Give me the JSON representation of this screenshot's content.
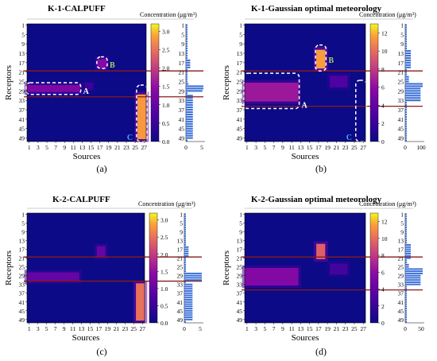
{
  "chart_data": [
    {
      "type": "heatmap",
      "title": "K-1-CALPUFF",
      "panel_label": "(a)",
      "xlabel": "Sources",
      "ylabel": "Receptors",
      "legend_title": "Concentration (μg/m³)",
      "x_ticks": [
        "1",
        "3",
        "5",
        "7",
        "9",
        "11",
        "13",
        "15",
        "17",
        "19",
        "21",
        "23",
        "25",
        "27"
      ],
      "y_ticks": [
        "1",
        "5",
        "9",
        "13",
        "17",
        "21",
        "25",
        "29",
        "33",
        "37",
        "41",
        "45",
        "49"
      ],
      "colorbar_ticks": [
        "0.0",
        "0.5",
        "1.0",
        "1.5",
        "2.0",
        "2.5",
        "3.0"
      ],
      "zlim": [
        0,
        3.2
      ],
      "marginal_ticks": [
        "0",
        "5"
      ],
      "bands": [
        {
          "x": [
            1,
            12
          ],
          "y": [
            27,
            29
          ],
          "value": 1.3
        },
        {
          "x": [
            17,
            18
          ],
          "y": [
            16,
            19
          ],
          "value": 1.4
        },
        {
          "x": [
            26,
            27
          ],
          "y": [
            31,
            49
          ],
          "value": 2.8
        },
        {
          "x": [
            14,
            15
          ],
          "y": [
            26,
            28
          ],
          "value": 0.5
        }
      ],
      "hlines": [
        21,
        32
      ],
      "annotations": [
        {
          "text": "A",
          "box": {
            "x": [
              1,
              12
            ],
            "y": [
              26,
              30
            ]
          }
        },
        {
          "text": "B",
          "box": {
            "x": [
              17,
              18
            ],
            "y": [
              15,
              19
            ]
          }
        },
        {
          "text": "C",
          "box": {
            "x": [
              26,
              27
            ],
            "y": [
              27,
              50
            ]
          }
        }
      ]
    },
    {
      "type": "heatmap",
      "title": "K-1-Gaussian optimal meteorology",
      "panel_label": "(b)",
      "xlabel": "Sources",
      "ylabel": "Receptors",
      "legend_title": "Concentration (μg/m³)",
      "x_ticks": [
        "1",
        "3",
        "5",
        "7",
        "9",
        "11",
        "13",
        "15",
        "17",
        "19",
        "21",
        "23",
        "25",
        "27"
      ],
      "y_ticks": [
        "1",
        "5",
        "9",
        "13",
        "17",
        "21",
        "25",
        "29",
        "33",
        "37",
        "41",
        "45",
        "49"
      ],
      "colorbar_ticks": [
        "0",
        "2",
        "4",
        "6",
        "8",
        "10",
        "12"
      ],
      "zlim": [
        0,
        13
      ],
      "marginal_ticks": [
        "0",
        "100"
      ],
      "bands": [
        {
          "x": [
            1,
            12
          ],
          "y": [
            26,
            33
          ],
          "value": 6.5
        },
        {
          "x": [
            17,
            18
          ],
          "y": [
            12,
            19
          ],
          "value": 11.5
        },
        {
          "x": [
            20,
            23
          ],
          "y": [
            23,
            27
          ],
          "value": 3.0
        }
      ],
      "hlines": [
        21,
        36
      ],
      "annotations": [
        {
          "text": "A",
          "box": {
            "x": [
              1,
              12
            ],
            "y": [
              22,
              36
            ]
          }
        },
        {
          "text": "B",
          "box": {
            "x": [
              17,
              18
            ],
            "y": [
              10,
              20
            ]
          }
        },
        {
          "text": "C",
          "box": {
            "x": [
              26,
              27
            ],
            "y": [
              25,
              50
            ]
          }
        }
      ]
    },
    {
      "type": "heatmap",
      "title": "K-2-CALPUFF",
      "panel_label": "(c)",
      "xlabel": "Sources",
      "ylabel": "Receptors",
      "legend_title": "Concentration (μg/m³)",
      "x_ticks": [
        "1",
        "3",
        "5",
        "7",
        "9",
        "11",
        "13",
        "15",
        "17",
        "19",
        "21",
        "23",
        "25",
        "27"
      ],
      "y_ticks": [
        "1",
        "5",
        "9",
        "13",
        "17",
        "21",
        "25",
        "29",
        "33",
        "37",
        "41",
        "45",
        "49"
      ],
      "colorbar_ticks": [
        "0.0",
        "0.5",
        "1.0",
        "1.5",
        "2.0",
        "2.5",
        "3.0"
      ],
      "zlim": [
        0,
        3.2
      ],
      "marginal_ticks": [
        "0",
        "5"
      ],
      "bands": [
        {
          "x": [
            1,
            12
          ],
          "y": [
            28,
            31
          ],
          "value": 1.0
        },
        {
          "x": [
            17,
            18
          ],
          "y": [
            16,
            20
          ],
          "value": 1.0
        },
        {
          "x": [
            26,
            27
          ],
          "y": [
            33,
            49
          ],
          "value": 2.5
        }
      ],
      "hlines": [
        21,
        32
      ]
    },
    {
      "type": "heatmap",
      "title": "K-2-Gaussian optimal meteorology",
      "panel_label": "(d)",
      "xlabel": "Sources",
      "ylabel": "Receptors",
      "legend_title": "Concentration (μg/m³)",
      "x_ticks": [
        "1",
        "3",
        "5",
        "7",
        "9",
        "11",
        "13",
        "15",
        "17",
        "19",
        "21",
        "23",
        "25",
        "27"
      ],
      "y_ticks": [
        "1",
        "5",
        "9",
        "13",
        "17",
        "21",
        "25",
        "29",
        "33",
        "37",
        "41",
        "45",
        "49"
      ],
      "colorbar_ticks": [
        "0",
        "2",
        "4",
        "6",
        "8",
        "10",
        "12"
      ],
      "zlim": [
        0,
        13
      ],
      "marginal_ticks": [
        "0",
        "50"
      ],
      "bands": [
        {
          "x": [
            1,
            12
          ],
          "y": [
            26,
            33
          ],
          "value": 5.5
        },
        {
          "x": [
            17,
            18
          ],
          "y": [
            15,
            21
          ],
          "value": 9.5
        },
        {
          "x": [
            20,
            23
          ],
          "y": [
            24,
            28
          ],
          "value": 2.5
        }
      ],
      "hlines": [
        21,
        36
      ]
    }
  ],
  "colors": {
    "background": "#0c0a86",
    "separator_line": "#8b1a1a",
    "marginal_bar": "#3a6fd8",
    "annotation": "#ffffff",
    "label_b": "#a8d060",
    "label_c": "#4aa8ff"
  }
}
